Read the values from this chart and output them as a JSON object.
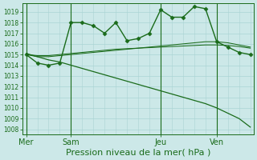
{
  "bg_color": "#cce8e8",
  "grid_color": "#aad4d4",
  "line_color": "#1a6b1a",
  "xlabel": "Pression niveau de la mer( hPa )",
  "xlabel_fontsize": 8,
  "ylim": [
    1007.5,
    1019.8
  ],
  "ytick_vals": [
    1008,
    1009,
    1010,
    1011,
    1012,
    1013,
    1014,
    1015,
    1016,
    1017,
    1018,
    1019
  ],
  "n_points": 21,
  "xtick_positions": [
    0,
    4,
    12,
    17
  ],
  "xtick_labels": [
    "Mer",
    "Sam",
    "Jeu",
    "Ven"
  ],
  "vline_positions": [
    0,
    4,
    12,
    17
  ],
  "series_zigzag": [
    1015.0,
    1014.2,
    1014.0,
    1014.2,
    1018.0,
    1018.0,
    1017.7,
    1017.0,
    1018.0,
    1016.3,
    1016.5,
    1017.0,
    1019.2,
    1018.5,
    1018.5,
    1019.5,
    1019.3,
    1016.2,
    1015.7,
    1015.2,
    1015.0
  ],
  "series_diagonal": [
    1015.1,
    1014.8,
    1014.5,
    1014.3,
    1014.0,
    1013.7,
    1013.4,
    1013.1,
    1012.8,
    1012.5,
    1012.2,
    1011.9,
    1011.6,
    1011.3,
    1011.0,
    1010.7,
    1010.4,
    1010.0,
    1009.5,
    1009.0,
    1008.2
  ],
  "series_flat1": [
    1015.0,
    1014.8,
    1014.8,
    1014.9,
    1015.0,
    1015.1,
    1015.2,
    1015.3,
    1015.4,
    1015.5,
    1015.6,
    1015.7,
    1015.8,
    1015.9,
    1016.0,
    1016.1,
    1016.2,
    1016.2,
    1016.1,
    1015.9,
    1015.7
  ],
  "series_flat2": [
    1015.0,
    1014.9,
    1014.9,
    1015.0,
    1015.1,
    1015.2,
    1015.3,
    1015.4,
    1015.5,
    1015.55,
    1015.6,
    1015.65,
    1015.7,
    1015.75,
    1015.8,
    1015.85,
    1015.9,
    1015.9,
    1015.85,
    1015.75,
    1015.6
  ]
}
